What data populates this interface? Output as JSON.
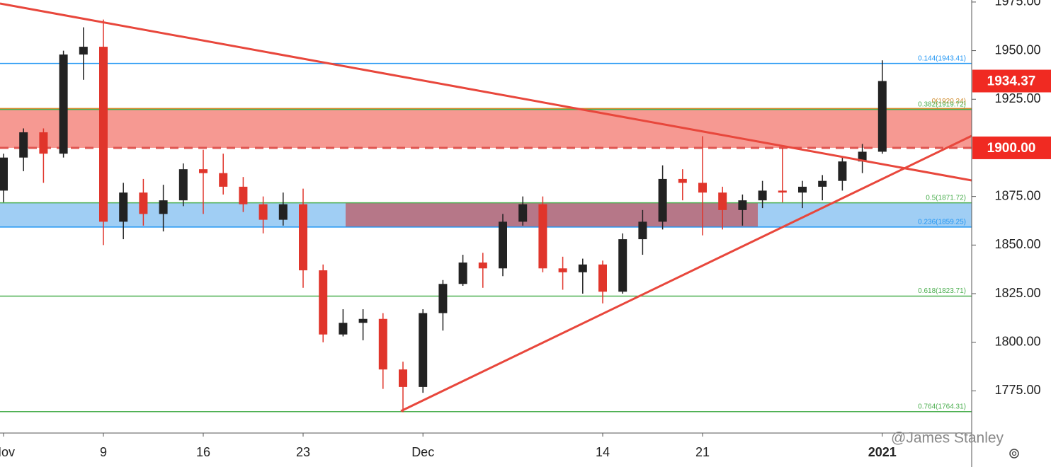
{
  "chart_data": {
    "type": "candlestick",
    "categories": [
      "Nov",
      null,
      null,
      null,
      null,
      "9",
      null,
      null,
      null,
      null,
      "16",
      null,
      null,
      null,
      null,
      "23",
      null,
      null,
      null,
      null,
      null,
      "Dec",
      null,
      null,
      null,
      null,
      null,
      null,
      null,
      null,
      "14",
      null,
      null,
      null,
      null,
      "21",
      null,
      null,
      null,
      null,
      null,
      null,
      null,
      null,
      "2021"
    ],
    "open": [
      1878,
      1895,
      1908,
      1897,
      1948,
      1952,
      1862,
      1877,
      1866,
      1873,
      1889,
      1887,
      1880,
      1871,
      1863,
      1871,
      1837,
      1804,
      1810,
      1812,
      1786,
      1777,
      1815,
      1830,
      1841,
      1838,
      1862,
      1871,
      1838,
      1836,
      1840,
      1826,
      1853,
      1862,
      1884,
      1882,
      1877,
      1868,
      1873,
      1878,
      1877,
      1880,
      1883,
      1893,
      1898
    ],
    "high": [
      1897,
      1910,
      1910,
      1950,
      1962,
      1966,
      1882,
      1884,
      1881,
      1892,
      1899,
      1897,
      1885,
      1875,
      1877,
      1879,
      1840,
      1817,
      1817,
      1815,
      1790,
      1817,
      1832,
      1845,
      1846,
      1866,
      1875,
      1875,
      1844,
      1843,
      1842,
      1856,
      1868,
      1891,
      1889,
      1906,
      1880,
      1876,
      1883,
      1900,
      1883,
      1886,
      1895,
      1902,
      1945
    ],
    "low": [
      1872,
      1888,
      1882,
      1895,
      1935,
      1850,
      1853,
      1860,
      1857,
      1870,
      1866,
      1876,
      1867,
      1856,
      1860,
      1828,
      1800,
      1803,
      1801,
      1776,
      1764,
      1774,
      1806,
      1829,
      1828,
      1834,
      1860,
      1836,
      1827,
      1825,
      1820,
      1825,
      1845,
      1858,
      1873,
      1855,
      1858,
      1860,
      1869,
      1872,
      1869,
      1873,
      1878,
      1887,
      1897
    ],
    "close": [
      1895,
      1908,
      1897,
      1948,
      1952,
      1862,
      1877,
      1866,
      1873,
      1889,
      1887,
      1880,
      1871,
      1863,
      1871,
      1837,
      1804,
      1810,
      1812,
      1786,
      1777,
      1815,
      1830,
      1841,
      1838,
      1862,
      1871,
      1838,
      1836,
      1840,
      1826,
      1853,
      1862,
      1884,
      1882,
      1877,
      1868,
      1873,
      1878,
      1877,
      1880,
      1883,
      1893,
      1898,
      1934.37
    ],
    "up_color": "#222222",
    "down_color": "#e0352b",
    "ylim": [
      1753.3,
      1976.05
    ],
    "yticks": [
      {
        "value": 1775,
        "label": "1775.00"
      },
      {
        "value": 1800,
        "label": "1800.00"
      },
      {
        "value": 1825,
        "label": "1825.00"
      },
      {
        "value": 1850,
        "label": "1850.00"
      },
      {
        "value": 1875,
        "label": "1875.00"
      },
      {
        "value": 1925,
        "label": "1925.00"
      },
      {
        "value": 1950,
        "label": "1950.00"
      },
      {
        "value": 1975,
        "label": "1975.00"
      }
    ],
    "levels": [
      {
        "label": "0.144(1943.41)",
        "value": 1943.41,
        "color": "#2196f3"
      },
      {
        "label": "0(1920.24)",
        "value": 1920.24,
        "color": "#d08a2a"
      },
      {
        "label": "0.382(1919.72)",
        "value": 1919.72,
        "color": "#4caf50"
      },
      {
        "label": "0.5(1871.72)",
        "value": 1871.72,
        "color": "#4caf50"
      },
      {
        "label": "0.236(1859.25)",
        "value": 1859.25,
        "color": "#2196f3"
      },
      {
        "label": "0.618(1823.71)",
        "value": 1823.71,
        "color": "#4caf50"
      },
      {
        "label": "0.764(1764.31)",
        "value": 1764.31,
        "color": "#4caf50"
      }
    ],
    "price_labels": [
      {
        "value": 1934.37,
        "label": "1934.37"
      },
      {
        "value": 1900,
        "label": "1900.00"
      }
    ],
    "watermark": "@James Stanley"
  }
}
